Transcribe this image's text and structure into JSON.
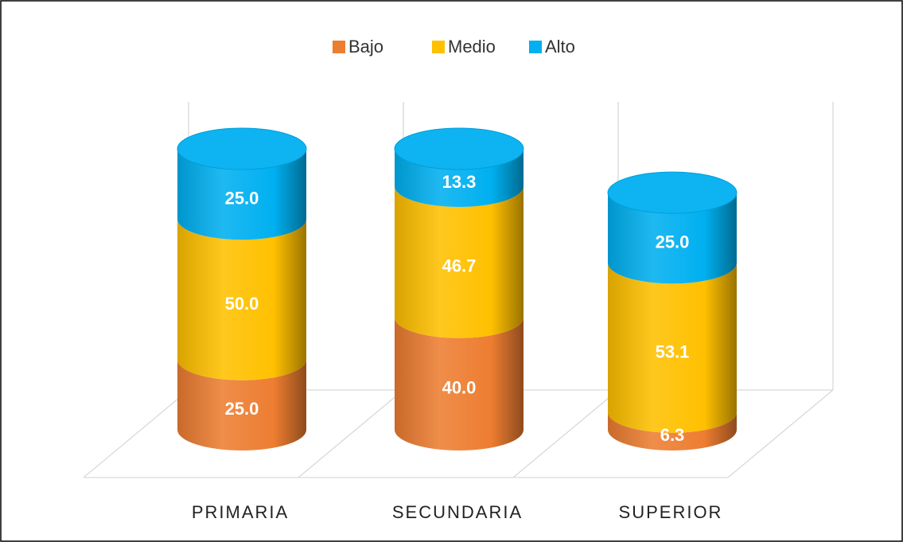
{
  "chart_data": {
    "type": "bar3d_cylinder_stacked",
    "categories": [
      "PRIMARIA",
      "SECUNDARIA",
      "SUPERIOR"
    ],
    "series": [
      {
        "name": "Bajo",
        "color": "#ed7d31",
        "values": [
          25.0,
          40.0,
          6.3
        ],
        "value_labels": [
          "25.0",
          "40.0",
          "6.3"
        ]
      },
      {
        "name": "Medio",
        "color": "#ffc000",
        "values": [
          50.0,
          46.7,
          53.1
        ],
        "value_labels": [
          "50.0",
          "46.7",
          "53.1"
        ]
      },
      {
        "name": "Alto",
        "color": "#00b0f0",
        "values": [
          25.0,
          13.3,
          25.0
        ],
        "value_labels": [
          "25.0",
          "13.3",
          "25.0"
        ]
      }
    ],
    "ylim": [
      0,
      100
    ],
    "legend": "top"
  }
}
